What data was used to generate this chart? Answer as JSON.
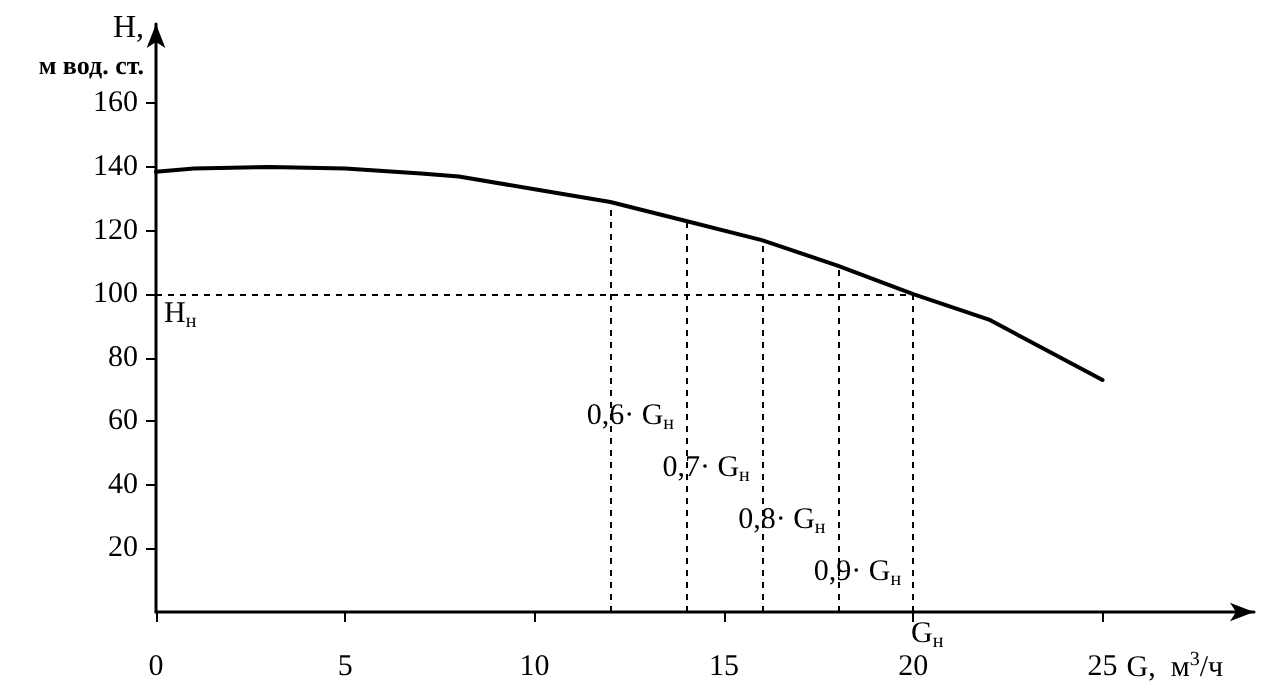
{
  "chart_data": {
    "type": "line",
    "xlabel": "G,  м$^{3}$/ч",
    "ylabel": "H,\nм вод. ст.",
    "x": [
      0,
      1,
      3,
      5,
      7,
      8,
      10,
      12,
      14,
      16,
      18,
      20,
      22,
      25
    ],
    "series": [
      {
        "color": "#000000",
        "values": [
          138.5,
          139.5,
          140,
          139.5,
          138,
          137,
          133,
          129,
          123,
          117,
          109,
          100,
          92,
          73
        ]
      }
    ],
    "xlim": [
      0,
      29
    ],
    "xticks": [
      0,
      5,
      10,
      15,
      20,
      25
    ],
    "ylim": [
      0,
      185
    ],
    "yticks": [
      20,
      40,
      60,
      80,
      100,
      120,
      140,
      160
    ],
    "grid": false,
    "marker": "none",
    "line_style": "solid",
    "ref_lines": [
      {
        "axis": "y",
        "value": 100,
        "label": "H$_{н}$",
        "line_style": "dashed"
      },
      {
        "axis": "x",
        "value": 12,
        "label": "0,6· G$_{н}$",
        "line_style": "dashed"
      },
      {
        "axis": "x",
        "value": 14,
        "label": "0,7· G$_{н}$",
        "line_style": "dashed"
      },
      {
        "axis": "x",
        "value": 16,
        "label": "0,8· G$_{н}$",
        "line_style": "dashed"
      },
      {
        "axis": "x",
        "value": 18,
        "label": "0,9· G$_{н}$",
        "line_style": "dashed"
      },
      {
        "axis": "x",
        "value": 20,
        "label": "G$_{н}$",
        "line_style": "dashed"
      }
    ]
  }
}
